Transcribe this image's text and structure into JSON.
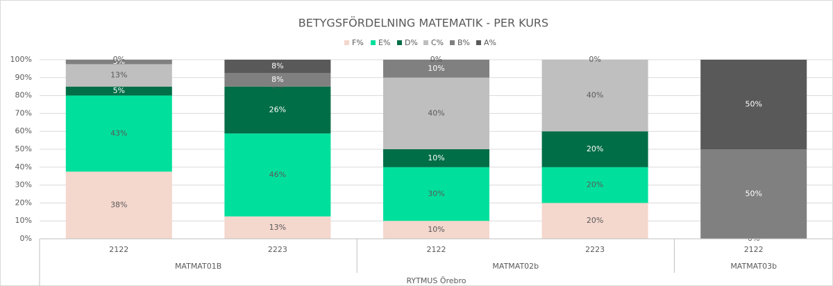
{
  "chart_data": {
    "type": "bar",
    "stacked": true,
    "title": "BETYGSFÖRDELNING MATEMATIK - PER KURS",
    "super_group": "RYTMUS Örebro",
    "groups": [
      {
        "name": "MATMAT01B",
        "categories": [
          "2122",
          "2223"
        ]
      },
      {
        "name": "MATMAT02b",
        "categories": [
          "2122",
          "2223"
        ]
      },
      {
        "name": "MATMAT03b",
        "categories": [
          "2122"
        ]
      }
    ],
    "series": [
      {
        "name": "F%",
        "color": "#f4d7cd",
        "values": [
          37.5,
          12.5,
          10,
          20,
          0
        ],
        "value_labels": [
          "38%",
          "13%",
          "10%",
          "20%",
          "0%"
        ]
      },
      {
        "name": "E%",
        "color": "#00e09c",
        "values": [
          42.5,
          46.3,
          30,
          20,
          0
        ],
        "value_labels": [
          "43%",
          "46%",
          "30%",
          "20%",
          null
        ]
      },
      {
        "name": "D%",
        "color": "#006e47",
        "values": [
          5,
          26.2,
          10,
          20,
          0
        ],
        "value_labels": [
          "5%",
          "26%",
          "10%",
          "20%",
          null
        ]
      },
      {
        "name": "C%",
        "color": "#bfbfbf",
        "values": [
          12.5,
          0,
          40,
          40,
          0
        ],
        "value_labels": [
          "13%",
          "0%",
          "40%",
          "40%",
          null
        ]
      },
      {
        "name": "B%",
        "color": "#808080",
        "values": [
          2.5,
          7.5,
          10,
          0,
          50
        ],
        "value_labels": [
          "3%",
          "8%",
          "10%",
          "0%",
          "50%"
        ]
      },
      {
        "name": "A%",
        "color": "#595959",
        "values": [
          0,
          7.5,
          0,
          0,
          50
        ],
        "value_labels": [
          "0%",
          "8%",
          "0%",
          null,
          "50%"
        ]
      }
    ],
    "ylim": [
      0,
      100
    ],
    "yticks": [
      {
        "value": 0,
        "label": "0%"
      },
      {
        "value": 10,
        "label": "10%"
      },
      {
        "value": 20,
        "label": "20%"
      },
      {
        "value": 30,
        "label": "30%"
      },
      {
        "value": 40,
        "label": "40%"
      },
      {
        "value": 50,
        "label": "50%"
      },
      {
        "value": 60,
        "label": "60%"
      },
      {
        "value": 70,
        "label": "70%"
      },
      {
        "value": 80,
        "label": "80%"
      },
      {
        "value": 90,
        "label": "90%"
      },
      {
        "value": 100,
        "label": "100%"
      }
    ],
    "grid": true,
    "legend": "top"
  }
}
